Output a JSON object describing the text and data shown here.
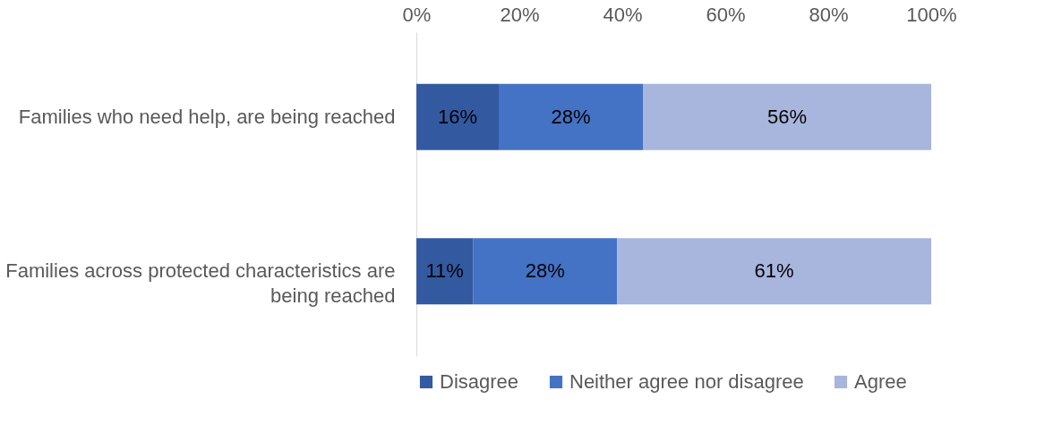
{
  "chart_data": {
    "type": "bar",
    "orientation": "horizontal",
    "stacked": true,
    "categories": [
      "Families who need help, are being reached",
      "Families across protected characteristics are being reached"
    ],
    "series": [
      {
        "name": "Disagree",
        "color": "#335aa1",
        "values": [
          16,
          11
        ],
        "value_labels": [
          "16%",
          "11%"
        ]
      },
      {
        "name": "Neither agree nor disagree",
        "color": "#4472c4",
        "values": [
          28,
          28
        ],
        "value_labels": [
          "28%",
          "28%"
        ]
      },
      {
        "name": "Agree",
        "color": "#a8b5dc",
        "values": [
          56,
          61
        ],
        "value_labels": [
          "56%",
          "61%"
        ]
      }
    ],
    "xlim": [
      0,
      100
    ],
    "xticks": [
      {
        "value": 0,
        "label": "0%"
      },
      {
        "value": 20,
        "label": "20%"
      },
      {
        "value": 40,
        "label": "40%"
      },
      {
        "value": 60,
        "label": "60%"
      },
      {
        "value": 80,
        "label": "80%"
      },
      {
        "value": 100,
        "label": "100%"
      }
    ],
    "grid": false,
    "legend": "bottom"
  }
}
